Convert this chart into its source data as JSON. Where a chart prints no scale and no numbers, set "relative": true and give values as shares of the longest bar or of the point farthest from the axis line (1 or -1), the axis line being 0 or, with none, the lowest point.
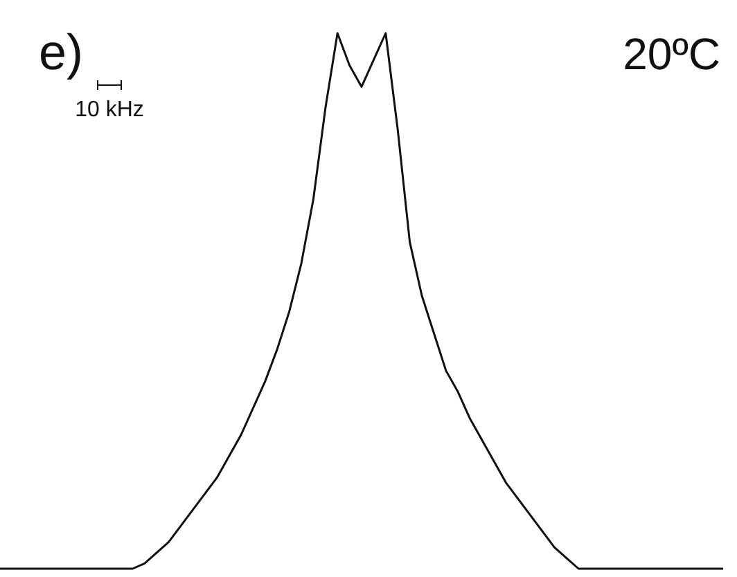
{
  "chart_data": {
    "type": "line",
    "relative": true,
    "categories": [
      null,
      null,
      null,
      null,
      null,
      null,
      null,
      null,
      null,
      null,
      null,
      null,
      null,
      null,
      null,
      null,
      null,
      null,
      null,
      null,
      null,
      null,
      null,
      null,
      null,
      null,
      null,
      null,
      null,
      null,
      null,
      null,
      null,
      null,
      null,
      null,
      null,
      null,
      null,
      null,
      null,
      null,
      null,
      null,
      null,
      null,
      null,
      null,
      null,
      null,
      null,
      null,
      null,
      null,
      null,
      null,
      null,
      null,
      null,
      null,
      null
    ],
    "series": [
      {
        "color": "#111111",
        "values": [
          0,
          0,
          0,
          0,
          0,
          0,
          0,
          0,
          0,
          0,
          0,
          0,
          0.01,
          0.03,
          0.05,
          0.08,
          0.11,
          0.14,
          0.17,
          0.21,
          0.25,
          0.3,
          0.35,
          0.41,
          0.48,
          0.57,
          0.69,
          0.86,
          1,
          0.94,
          0.9,
          0.95,
          1,
          0.82,
          0.61,
          0.51,
          0.44,
          0.37,
          0.33,
          0.28,
          0.24,
          0.2,
          0.16,
          0.13,
          0.1,
          0.07,
          0.04,
          0.02,
          0,
          0,
          0,
          0,
          0,
          0,
          0,
          0,
          0,
          0,
          0,
          0,
          0
        ]
      }
    ],
    "annotations": [
      "e)",
      "20ºC",
      "10 kHz"
    ],
    "legend": false,
    "marker": "none",
    "line_style": "solid"
  }
}
